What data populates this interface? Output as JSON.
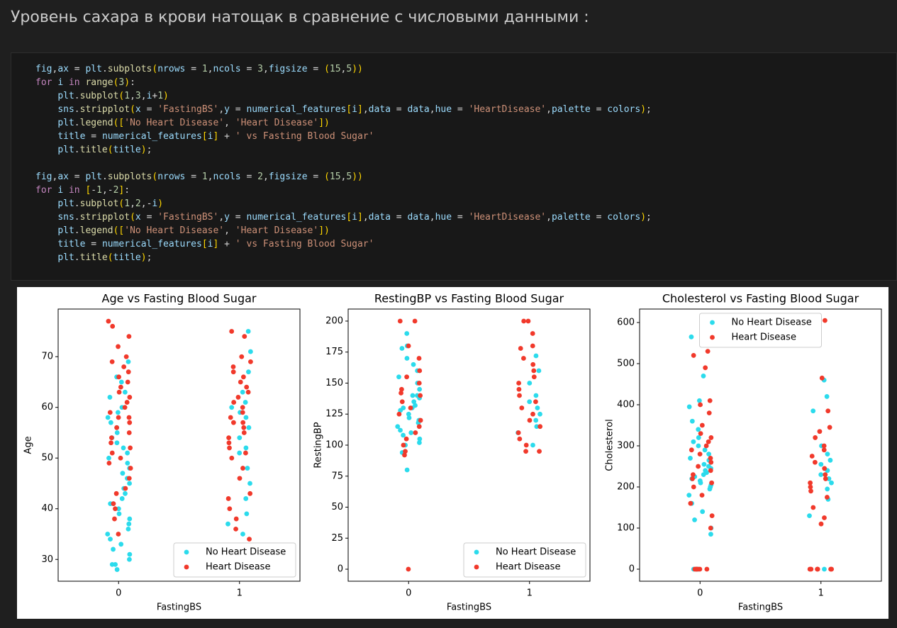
{
  "heading": "Уровень сахара в крови натощак в сравнение с числовыми данными :",
  "code": {
    "blocks": [
      [
        "fig,ax = plt.subplots(nrows = 1,ncols = 3,figsize = (15,5))",
        "for i in range(3):",
        "    plt.subplot(1,3,i+1)",
        "    sns.stripplot(x = 'FastingBS',y = numerical_features[i],data = data,hue = 'HeartDisease',palette = colors);",
        "    plt.legend(['No Heart Disease', 'Heart Disease'])",
        "    title = numerical_features[i] + ' vs Fasting Blood Sugar'",
        "    plt.title(title);"
      ],
      [
        "fig,ax = plt.subplots(nrows = 1,ncols = 2,figsize = (15,5))",
        "for i in [-1,-2]:",
        "    plt.subplot(1,2,-i)",
        "    sns.stripplot(x = 'FastingBS',y = numerical_features[i],data = data,hue = 'HeartDisease',palette = colors);",
        "    plt.legend(['No Heart Disease', 'Heart Disease'])",
        "    title = numerical_features[i] + ' vs Fasting Blood Sugar'",
        "    plt.title(title);"
      ]
    ]
  },
  "chart_data": [
    {
      "type": "strip",
      "title": "Age vs Fasting Blood Sugar",
      "xlabel": "FastingBS",
      "ylabel": "Age",
      "categories": [
        "0",
        "1"
      ],
      "ylim": [
        25.7,
        79.4
      ],
      "yticks": [
        30,
        40,
        50,
        60,
        70
      ],
      "legend": "lower right",
      "series": [
        {
          "name": "No Heart Disease",
          "color": "#2bdbec",
          "values": [
            [
              28,
              29,
              29,
              30,
              31,
              32,
              33,
              34,
              35,
              36,
              37,
              38,
              39,
              40,
              41,
              41,
              42,
              43,
              44,
              45,
              46,
              47,
              48,
              49,
              50,
              51,
              52,
              53,
              54,
              55,
              56,
              57,
              58,
              59,
              60,
              62,
              63,
              65,
              66,
              69
            ],
            [
              35,
              37,
              39,
              42,
              45,
              48,
              51,
              52,
              54,
              56,
              58,
              59,
              60,
              61,
              63,
              67,
              71,
              75
            ]
          ]
        },
        {
          "name": "Heart Disease",
          "color": "#f1392b",
          "values": [
            [
              35,
              38,
              40,
              41,
              43,
              44,
              46,
              48,
              49,
              50,
              51,
              52,
              53,
              54,
              55,
              56,
              57,
              58,
              58,
              59,
              60,
              61,
              62,
              63,
              64,
              65,
              66,
              67,
              68,
              69,
              70,
              72,
              74,
              76,
              77
            ],
            [
              34,
              36,
              38,
              40,
              42,
              43,
              46,
              48,
              50,
              51,
              52,
              53,
              54,
              55,
              56,
              57,
              57,
              58,
              59,
              60,
              61,
              62,
              63,
              64,
              65,
              66,
              67,
              68,
              69,
              70,
              74,
              75
            ]
          ]
        }
      ]
    },
    {
      "type": "strip",
      "title": "RestingBP vs Fasting Blood Sugar",
      "xlabel": "FastingBS",
      "ylabel": "RestingBP",
      "categories": [
        "0",
        "1"
      ],
      "ylim": [
        -9.7,
        209.7
      ],
      "yticks": [
        0,
        25,
        50,
        75,
        100,
        125,
        150,
        175,
        200
      ],
      "legend": "lower right",
      "series": [
        {
          "name": "No Heart Disease",
          "color": "#2bdbec",
          "values": [
            [
              80,
              94,
              100,
              102,
              105,
              108,
              110,
              112,
              115,
              118,
              120,
              120,
              122,
              125,
              128,
              130,
              130,
              132,
              135,
              138,
              140,
              140,
              145,
              150,
              155,
              160,
              165,
              170,
              178,
              180,
              190
            ],
            [
              100,
              110,
              115,
              120,
              125,
              130,
              135,
              140,
              150,
              160,
              172
            ]
          ]
        },
        {
          "name": "Heart Disease",
          "color": "#f1392b",
          "values": [
            [
              0,
              92,
              95,
              100,
              105,
              110,
              115,
              120,
              125,
              130,
              135,
              140,
              142,
              145,
              150,
              155,
              160,
              170,
              180,
              200,
              200
            ],
            [
              95,
              95,
              100,
              105,
              110,
              115,
              120,
              125,
              130,
              135,
              140,
              145,
              150,
              155,
              160,
              165,
              170,
              178,
              180,
              190,
              200,
              200
            ]
          ]
        }
      ]
    },
    {
      "type": "strip",
      "title": "Cholesterol vs Fasting Blood Sugar",
      "xlabel": "FastingBS",
      "ylabel": "Cholesterol",
      "categories": [
        "0",
        "1"
      ],
      "ylim": [
        -29.3,
        632.8
      ],
      "yticks": [
        0,
        100,
        200,
        300,
        400,
        500,
        600
      ],
      "legend": "upper center",
      "series": [
        {
          "name": "No Heart Disease",
          "color": "#2bdbec",
          "values": [
            [
              0,
              0,
              0,
              85,
              100,
              120,
              140,
              160,
              180,
              195,
              200,
              205,
              210,
              215,
              220,
              225,
              230,
              235,
              240,
              245,
              250,
              255,
              260,
              265,
              270,
              280,
              290,
              300,
              310,
              320,
              340,
              360,
              395,
              410,
              470,
              565
            ],
            [
              0,
              130,
              170,
              195,
              210,
              220,
              230,
              240,
              255,
              265,
              280,
              300,
              385,
              420,
              460
            ]
          ]
        },
        {
          "name": "Heart Disease",
          "color": "#f1392b",
          "values": [
            [
              0,
              0,
              0,
              0,
              0,
              0,
              100,
              130,
              160,
              180,
              200,
              210,
              220,
              230,
              240,
              250,
              260,
              270,
              280,
              290,
              300,
              310,
              320,
              330,
              350,
              380,
              400,
              410,
              490,
              520,
              530
            ],
            [
              0,
              0,
              0,
              0,
              0,
              0,
              110,
              125,
              150,
              175,
              190,
              200,
              210,
              220,
              230,
              245,
              260,
              275,
              290,
              300,
              320,
              335,
              345,
              385,
              465,
              605
            ]
          ]
        }
      ]
    }
  ]
}
